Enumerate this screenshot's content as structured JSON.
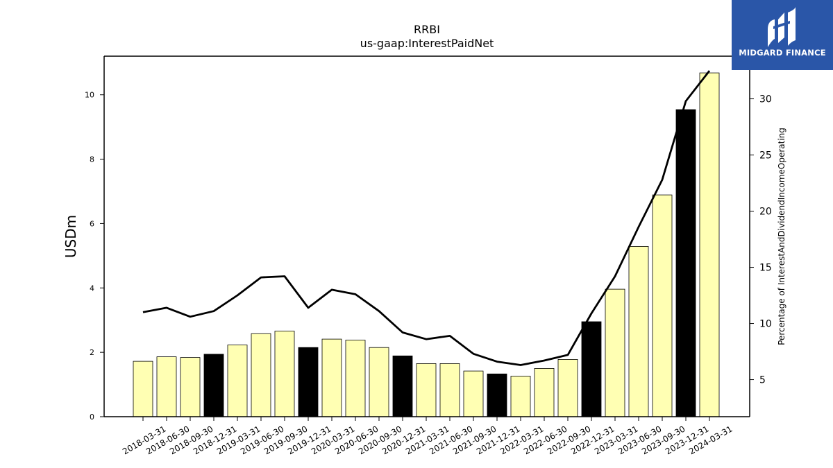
{
  "chart_data": {
    "type": "bar",
    "title": "RRBI",
    "subtitle": "us-gaap:InterestPaidNet",
    "ylabel": "USDm",
    "y2label": "Percentage of InterestAndDividendIncomeOperating",
    "ylim": [
      0,
      11.2
    ],
    "y2lim": [
      1.7,
      33.8
    ],
    "yticks": [
      0,
      2,
      4,
      6,
      8,
      10
    ],
    "y2ticks": [
      5,
      10,
      15,
      20,
      25,
      30
    ],
    "categories": [
      "2018-03-31",
      "2018-06-30",
      "2018-09-30",
      "2018-12-31",
      "2019-03-31",
      "2019-06-30",
      "2019-09-30",
      "2019-12-31",
      "2020-03-31",
      "2020-06-30",
      "2020-09-30",
      "2020-12-31",
      "2021-03-31",
      "2021-06-30",
      "2021-09-30",
      "2021-12-31",
      "2022-03-31",
      "2022-06-30",
      "2022-09-30",
      "2022-12-31",
      "2023-03-31",
      "2023-06-30",
      "2023-09-30",
      "2023-12-31",
      "2024-03-31"
    ],
    "series": [
      {
        "kind": "bar",
        "values": [
          1.72,
          1.86,
          1.84,
          1.94,
          2.23,
          2.58,
          2.66,
          2.15,
          2.41,
          2.38,
          2.15,
          1.89,
          1.65,
          1.65,
          1.42,
          1.33,
          1.26,
          1.5,
          1.78,
          2.95,
          3.96,
          5.29,
          6.89,
          9.54,
          10.68
        ],
        "highlight": [
          false,
          false,
          false,
          true,
          false,
          false,
          false,
          true,
          false,
          false,
          false,
          true,
          false,
          false,
          false,
          true,
          false,
          false,
          false,
          true,
          false,
          false,
          false,
          true,
          false
        ]
      },
      {
        "kind": "line",
        "axis": "right",
        "values": [
          11.0,
          11.4,
          10.6,
          11.1,
          12.5,
          14.1,
          14.2,
          11.4,
          13.0,
          12.6,
          11.1,
          9.2,
          8.6,
          8.9,
          7.3,
          6.6,
          6.3,
          6.7,
          7.2,
          10.9,
          14.2,
          18.6,
          22.8,
          29.8,
          32.5
        ]
      }
    ],
    "colors": {
      "bar": "#ffffb3",
      "bar_highlight": "#000000",
      "line": "#000000"
    },
    "grid": false,
    "legend": "none"
  },
  "logo": {
    "text": "MIDGARD FINANCE"
  }
}
